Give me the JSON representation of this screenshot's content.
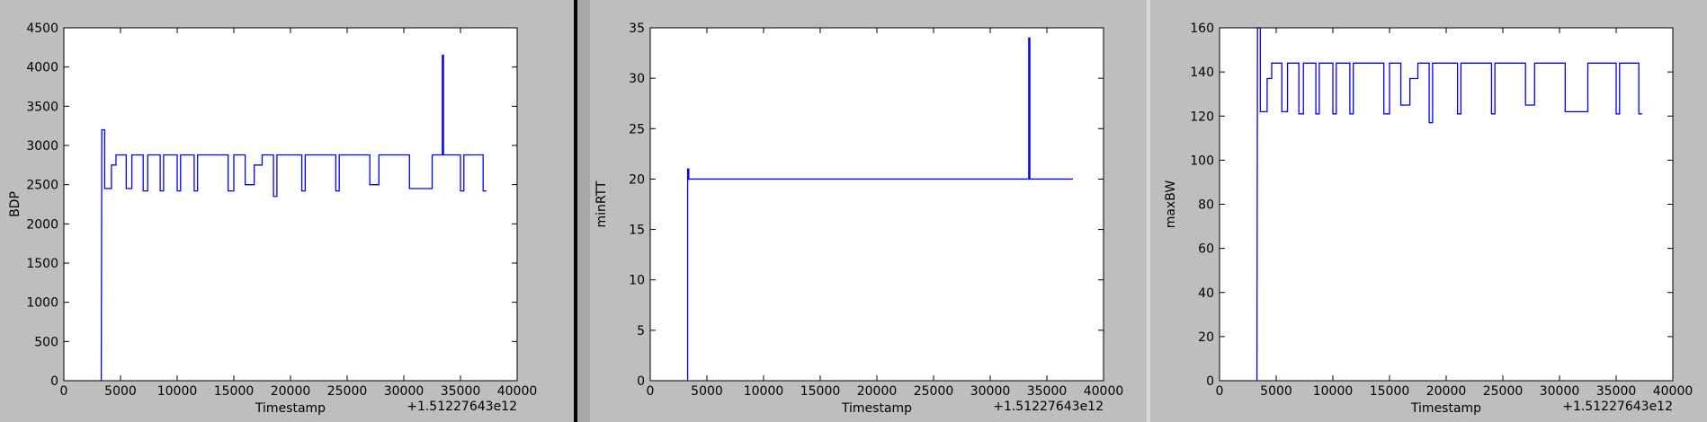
{
  "chart_data": [
    {
      "type": "line",
      "ylabel": "BDP",
      "xlabel": "Timestamp",
      "x_offset_label": "+1.51227643e12",
      "xlim": [
        0,
        40000
      ],
      "xticks": [
        0,
        5000,
        10000,
        15000,
        20000,
        25000,
        30000,
        35000,
        40000
      ],
      "ylim": [
        0,
        4500
      ],
      "yticks": [
        0,
        500,
        1000,
        1500,
        2000,
        2500,
        3000,
        3500,
        4000,
        4500
      ],
      "series": [
        {
          "color": "#0000ff",
          "x": [
            3300,
            3350,
            3600,
            3600,
            4200,
            4200,
            4600,
            4600,
            5500,
            5500,
            6000,
            6000,
            7000,
            7000,
            7400,
            7400,
            8500,
            8500,
            8800,
            8800,
            10000,
            10000,
            10300,
            10300,
            11500,
            11500,
            11800,
            11800,
            14500,
            14500,
            15000,
            15000,
            16000,
            16000,
            16800,
            16800,
            17500,
            17500,
            18500,
            18500,
            18800,
            18800,
            21000,
            21000,
            21300,
            21300,
            24000,
            24000,
            24300,
            24300,
            27000,
            27000,
            27800,
            27800,
            30500,
            30500,
            32500,
            32500,
            33400,
            33400,
            33500,
            33500,
            35000,
            35000,
            35300,
            35300,
            37000,
            37000,
            37300
          ],
          "values": [
            0,
            3200,
            3200,
            2450,
            2450,
            2750,
            2750,
            2880,
            2880,
            2450,
            2450,
            2880,
            2880,
            2420,
            2420,
            2880,
            2880,
            2420,
            2420,
            2880,
            2880,
            2420,
            2420,
            2880,
            2880,
            2420,
            2420,
            2880,
            2880,
            2420,
            2420,
            2880,
            2880,
            2500,
            2500,
            2750,
            2750,
            2880,
            2880,
            2350,
            2350,
            2880,
            2880,
            2420,
            2420,
            2880,
            2880,
            2420,
            2420,
            2880,
            2880,
            2500,
            2500,
            2880,
            2880,
            2450,
            2450,
            2880,
            2880,
            4150,
            4150,
            2880,
            2880,
            2420,
            2420,
            2880,
            2880,
            2420,
            2420
          ]
        }
      ]
    },
    {
      "type": "line",
      "ylabel": "minRTT",
      "xlabel": "Timestamp",
      "x_offset_label": "+1.51227643e12",
      "xlim": [
        0,
        40000
      ],
      "xticks": [
        0,
        5000,
        10000,
        15000,
        20000,
        25000,
        30000,
        35000,
        40000
      ],
      "ylim": [
        0,
        35
      ],
      "yticks": [
        0,
        5,
        10,
        15,
        20,
        25,
        30,
        35
      ],
      "series": [
        {
          "color": "#0000ff",
          "x": [
            3300,
            3300,
            3400,
            3400,
            33400,
            33400,
            33500,
            33500,
            37300
          ],
          "values": [
            0,
            21,
            21,
            20,
            20,
            34,
            34,
            20,
            20
          ]
        }
      ]
    },
    {
      "type": "line",
      "ylabel": "maxBW",
      "xlabel": "Timestamp",
      "x_offset_label": "+1.51227643e12",
      "xlim": [
        0,
        40000
      ],
      "xticks": [
        0,
        5000,
        10000,
        15000,
        20000,
        25000,
        30000,
        35000,
        40000
      ],
      "ylim": [
        0,
        160
      ],
      "yticks": [
        0,
        20,
        40,
        60,
        80,
        100,
        120,
        140,
        160
      ],
      "series": [
        {
          "color": "#0000ff",
          "x": [
            3300,
            3350,
            3600,
            3600,
            4200,
            4200,
            4600,
            4600,
            5500,
            5500,
            6000,
            6000,
            7000,
            7000,
            7400,
            7400,
            8500,
            8500,
            8800,
            8800,
            10000,
            10000,
            10300,
            10300,
            11500,
            11500,
            11800,
            11800,
            14500,
            14500,
            15000,
            15000,
            16000,
            16000,
            16800,
            16800,
            17500,
            17500,
            18500,
            18500,
            18800,
            18800,
            21000,
            21000,
            21300,
            21300,
            24000,
            24000,
            24300,
            24300,
            27000,
            27000,
            27800,
            27800,
            30500,
            30500,
            32500,
            32500,
            35000,
            35000,
            35300,
            35300,
            37000,
            37000,
            37300
          ],
          "values": [
            0,
            160,
            160,
            122,
            122,
            137,
            137,
            144,
            144,
            122,
            122,
            144,
            144,
            121,
            121,
            144,
            144,
            121,
            121,
            144,
            144,
            121,
            121,
            144,
            144,
            121,
            121,
            144,
            144,
            121,
            121,
            144,
            144,
            125,
            125,
            137,
            137,
            144,
            144,
            117,
            117,
            144,
            144,
            121,
            121,
            144,
            144,
            121,
            121,
            144,
            144,
            125,
            125,
            144,
            144,
            122,
            122,
            144,
            144,
            121,
            121,
            144,
            144,
            121,
            121
          ]
        }
      ]
    }
  ]
}
